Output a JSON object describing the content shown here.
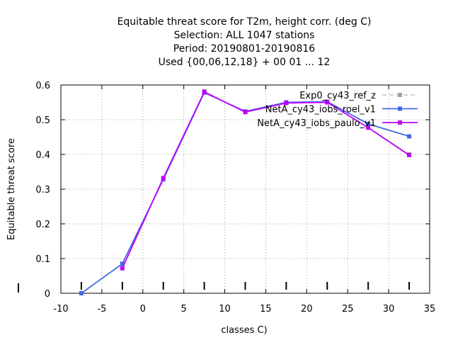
{
  "chart_data": {
    "type": "line",
    "title_lines": [
      "Equitable threat score  for T2m, height corr. (deg C)",
      "Selection: ALL    1047 stations",
      "Period: 20190801-20190816",
      "Used {00,06,12,18} + 00 01 ... 12"
    ],
    "xlabel": "classes C)",
    "ylabel": "Equitable threat score",
    "xlim": [
      -10,
      35
    ],
    "ylim": [
      0,
      0.6
    ],
    "xticks": [
      -10,
      -5,
      0,
      5,
      10,
      15,
      20,
      25,
      30,
      35
    ],
    "yticks": [
      0,
      0.1,
      0.2,
      0.3,
      0.4,
      0.5,
      0.6
    ],
    "xtick_labels": [
      "-10",
      "-5",
      "0",
      "5",
      "10",
      "15",
      "20",
      "25",
      "30",
      "35"
    ],
    "ytick_labels": [
      "0",
      "0.1",
      "0.2",
      "0.3",
      "0.4",
      "0.5",
      "0.6"
    ],
    "grid": true,
    "legend_position": "top-right",
    "series": [
      {
        "name": "Exp0_cy43_ref_z",
        "color": "#a0a0a0",
        "dashed": true,
        "x": [
          -7.5,
          -2.5,
          2.5,
          7.5,
          12.5,
          17.5,
          22.5,
          27.5,
          32.5
        ],
        "y": [
          0.0,
          0.085,
          0.328,
          0.582,
          0.522,
          0.548,
          0.55,
          0.478,
          0.4
        ]
      },
      {
        "name": "NetA_cy43_iobs_roel_v1",
        "color": "#4169e1",
        "dashed": false,
        "x": [
          -7.5,
          -2.5,
          2.5,
          7.5,
          12.5,
          17.5,
          22.5,
          27.5,
          32.5
        ],
        "y": [
          0.0,
          0.085,
          0.328,
          0.578,
          0.524,
          0.55,
          0.552,
          0.488,
          0.452
        ]
      },
      {
        "name": "NetA_cy43_iobs_paulo_v1",
        "color": "#c000ff",
        "dashed": false,
        "x": [
          -2.5,
          2.5,
          7.5,
          12.5,
          17.5,
          22.5,
          27.5,
          32.5
        ],
        "y": [
          0.072,
          0.332,
          0.58,
          0.522,
          0.548,
          0.55,
          0.477,
          0.398
        ]
      }
    ],
    "marker_x": [
      -7.5,
      -2.5,
      2.5,
      7.5,
      12.5,
      17.5,
      22.5,
      27.5,
      32.5
    ],
    "marker_y": -0.018
  }
}
